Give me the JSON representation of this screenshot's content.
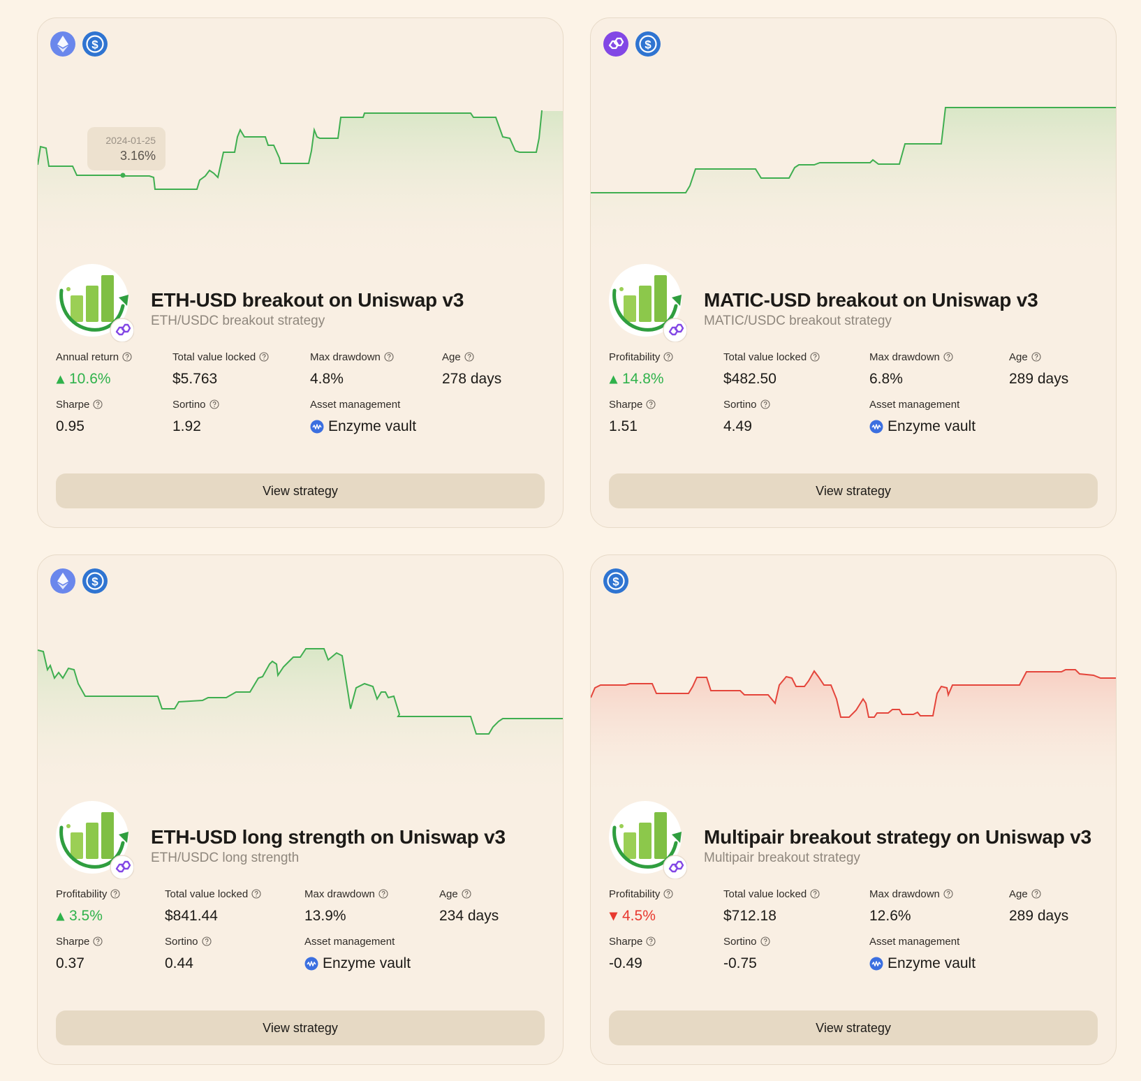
{
  "cards": [
    {
      "chains": [
        "ethereum-icon",
        "usdc-icon"
      ],
      "title": "ETH-USD breakout on Uniswap v3",
      "subtitle": "ETH/USDC breakout strategy",
      "tooltip": {
        "date": "2024-01-25",
        "value": "3.16%"
      },
      "trend": "positive",
      "metrics": {
        "return_label": "Annual return",
        "return_value": "10.6%",
        "return_direction": "up",
        "tvl_label": "Total value locked",
        "tvl_value": "$5.763",
        "drawdown_label": "Max drawdown",
        "drawdown_value": "4.8%",
        "age_label": "Age",
        "age_value": "278 days",
        "sharpe_label": "Sharpe",
        "sharpe_value": "0.95",
        "sortino_label": "Sortino",
        "sortino_value": "1.92",
        "asset_label": "Asset management",
        "asset_value": "Enzyme vault"
      },
      "button_label": "View strategy"
    },
    {
      "chains": [
        "polygon-icon",
        "usdc-icon"
      ],
      "title": "MATIC-USD breakout on Uniswap v3",
      "subtitle": "MATIC/USDC breakout strategy",
      "trend": "positive",
      "metrics": {
        "return_label": "Profitability",
        "return_value": "14.8%",
        "return_direction": "up",
        "tvl_label": "Total value locked",
        "tvl_value": "$482.50",
        "drawdown_label": "Max drawdown",
        "drawdown_value": "6.8%",
        "age_label": "Age",
        "age_value": "289 days",
        "sharpe_label": "Sharpe",
        "sharpe_value": "1.51",
        "sortino_label": "Sortino",
        "sortino_value": "4.49",
        "asset_label": "Asset management",
        "asset_value": "Enzyme vault"
      },
      "button_label": "View strategy"
    },
    {
      "chains": [
        "ethereum-icon",
        "usdc-icon"
      ],
      "title": "ETH-USD long strength on Uniswap v3",
      "subtitle": "ETH/USDC long strength",
      "trend": "positive",
      "metrics": {
        "return_label": "Profitability",
        "return_value": "3.5%",
        "return_direction": "up",
        "tvl_label": "Total value locked",
        "tvl_value": "$841.44",
        "drawdown_label": "Max drawdown",
        "drawdown_value": "13.9%",
        "age_label": "Age",
        "age_value": "234 days",
        "sharpe_label": "Sharpe",
        "sharpe_value": "0.37",
        "sortino_label": "Sortino",
        "sortino_value": "0.44",
        "asset_label": "Asset management",
        "asset_value": "Enzyme vault"
      },
      "button_label": "View strategy"
    },
    {
      "chains": [
        "usdc-icon"
      ],
      "title": "Multipair breakout strategy on Uniswap v3",
      "subtitle": "Multipair breakout strategy",
      "trend": "negative",
      "metrics": {
        "return_label": "Profitability",
        "return_value": "4.5%",
        "return_direction": "down",
        "tvl_label": "Total value locked",
        "tvl_value": "$712.18",
        "drawdown_label": "Max drawdown",
        "drawdown_value": "12.6%",
        "age_label": "Age",
        "age_value": "289 days",
        "sharpe_label": "Sharpe",
        "sharpe_value": "-0.49",
        "sortino_label": "Sortino",
        "sortino_value": "-0.75",
        "asset_label": "Asset management",
        "asset_value": "Enzyme vault"
      },
      "button_label": "View strategy"
    }
  ],
  "colors": {
    "positive_line": "#3fae50",
    "negative_line": "#e4453b",
    "button_bg": "#e6d9c4",
    "page_bg": "#fcf3e7"
  }
}
